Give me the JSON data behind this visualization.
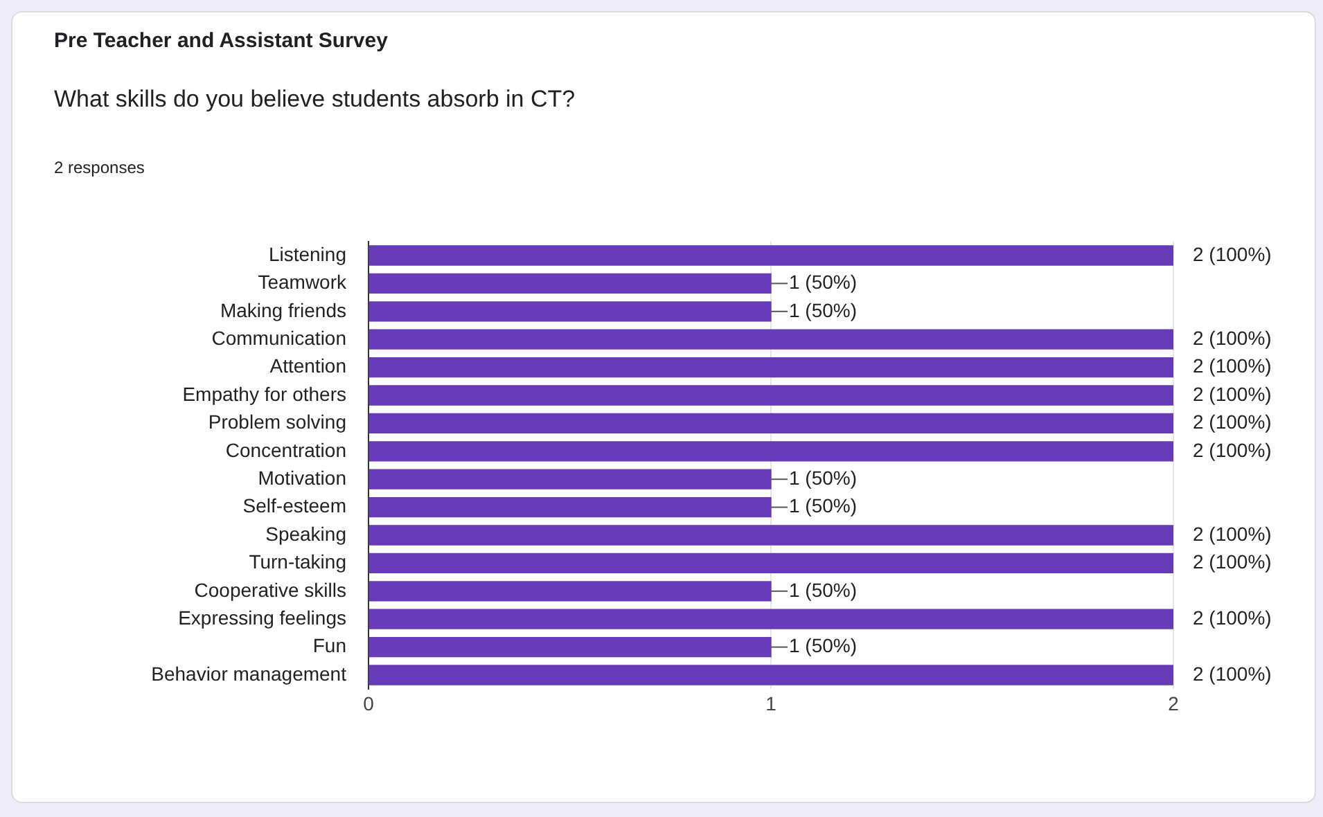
{
  "chart_data": {
    "type": "bar",
    "orientation": "horizontal",
    "title": "Pre Teacher and Assistant Survey",
    "subtitle": "What skills do you believe students absorb in CT?",
    "annotations": [
      "2 responses"
    ],
    "categories": [
      "Listening",
      "Teamwork",
      "Making friends",
      "Communication",
      "Attention",
      "Empathy for others",
      "Problem solving",
      "Concentration",
      "Motivation",
      "Self-esteem",
      "Speaking",
      "Turn-taking",
      "Cooperative skills",
      "Expressing feelings",
      "Fun",
      "Behavior management"
    ],
    "values": [
      2,
      1,
      1,
      2,
      2,
      2,
      2,
      2,
      1,
      1,
      2,
      2,
      1,
      2,
      1,
      2
    ],
    "value_labels": [
      "2 (100%)",
      "1 (50%)",
      "1 (50%)",
      "2 (100%)",
      "2 (100%)",
      "2 (100%)",
      "2 (100%)",
      "2 (100%)",
      "1 (50%)",
      "1 (50%)",
      "2 (100%)",
      "2 (100%)",
      "1 (50%)",
      "2 (100%)",
      "1 (50%)",
      "2 (100%)"
    ],
    "color": "#673ab7",
    "xlim": [
      0,
      2
    ],
    "xticks": [
      0,
      1,
      2
    ],
    "grid": "x",
    "legend": false
  }
}
